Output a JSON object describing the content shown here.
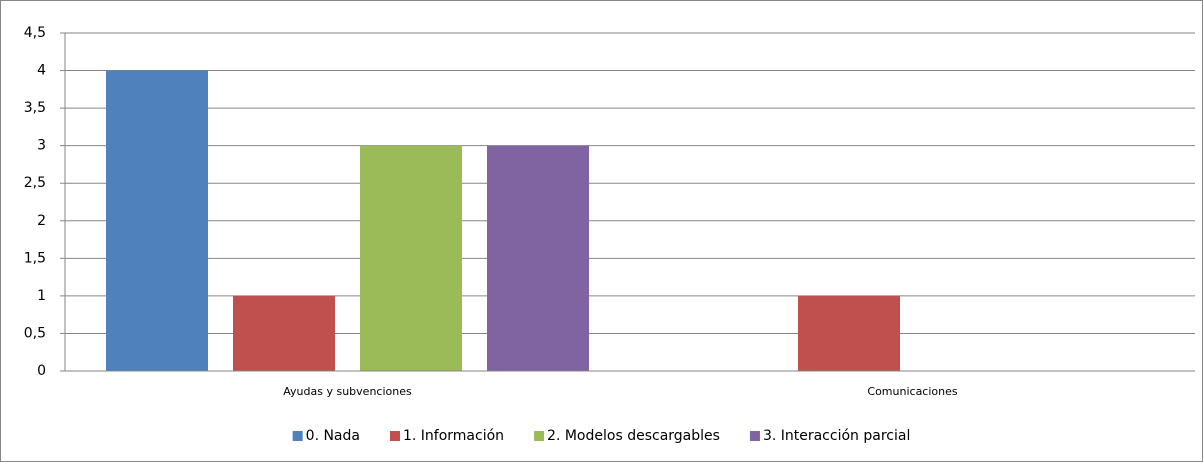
{
  "chart_data": {
    "type": "bar",
    "categories": [
      "Ayudas y subvenciones",
      "Comunicaciones"
    ],
    "series": [
      {
        "name": "0. Nada",
        "color": "#4f81bd",
        "values": [
          4,
          0
        ]
      },
      {
        "name": "1. Información",
        "color": "#c0504d",
        "values": [
          1,
          1
        ]
      },
      {
        "name": "2. Modelos descargables",
        "color": "#9bbb59",
        "values": [
          3,
          0
        ]
      },
      {
        "name": "3. Interacción parcial",
        "color": "#8064a2",
        "values": [
          3,
          0
        ]
      }
    ],
    "ylim": [
      0,
      4.5
    ],
    "yticks": [
      0,
      {
        "value": 0.5,
        "label": "0,5"
      },
      1,
      {
        "value": 1.5,
        "label": "1,5"
      },
      2,
      {
        "value": 2.5,
        "label": "2,5"
      },
      3,
      {
        "value": 3.5,
        "label": "3,5"
      },
      4,
      {
        "value": 4.5,
        "label": "4,5"
      }
    ],
    "grid": true,
    "legend": "bottom"
  }
}
